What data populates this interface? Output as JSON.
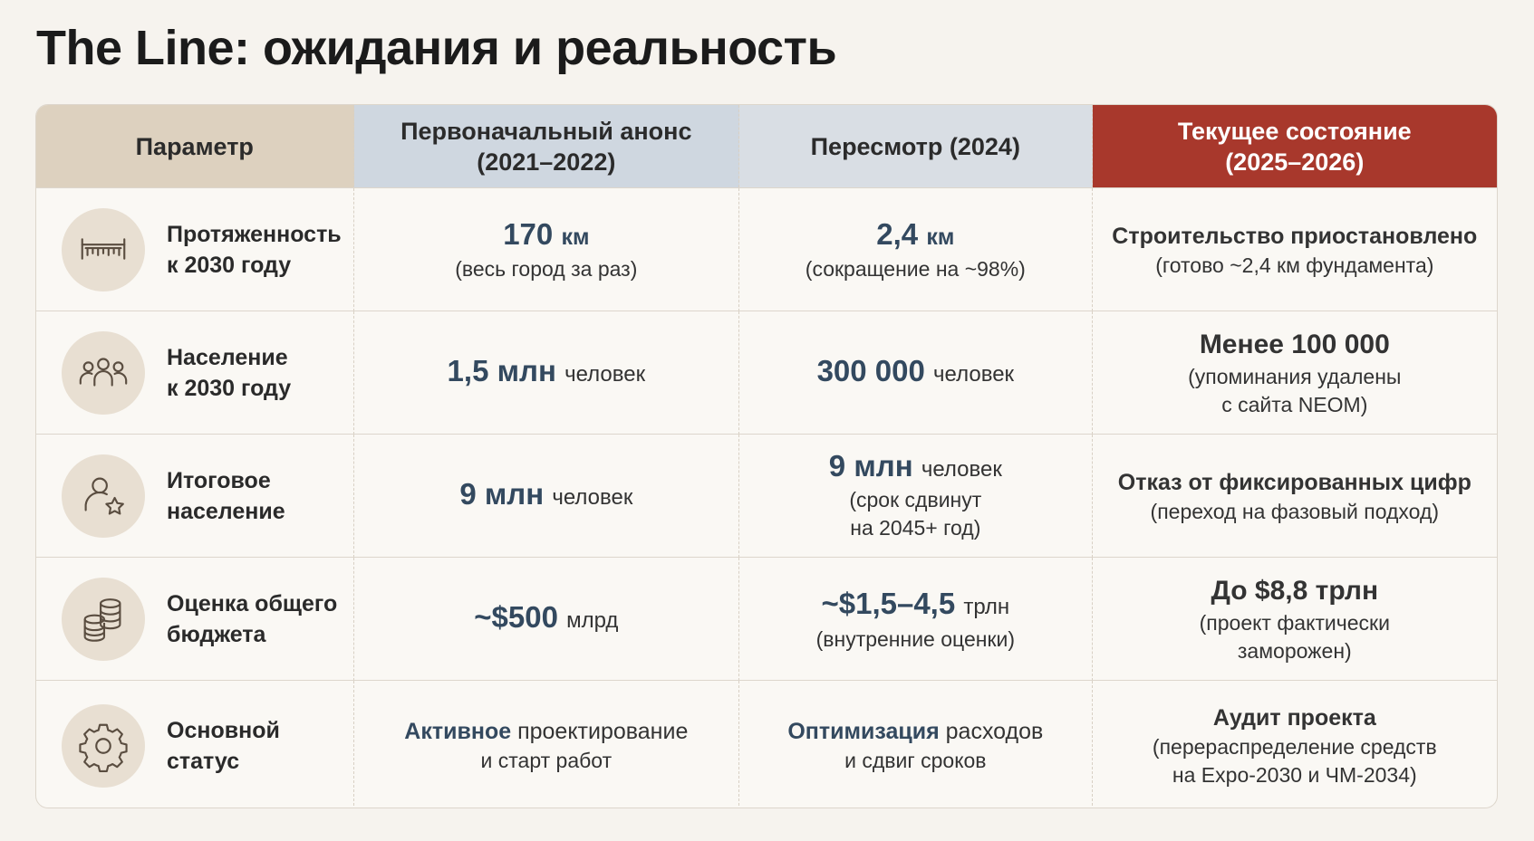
{
  "title": "The Line: ожидания и реальность",
  "colors": {
    "accent_red": "#a8382c",
    "accent_blue": "#33495f",
    "header_param": "#ddd1bf",
    "header_initial": "#cfd7e0",
    "header_revision": "#d9dee4",
    "header_current": "#a8382c"
  },
  "headers": {
    "param": "Параметр",
    "initial_l1": "Первоначальный анонс",
    "initial_l2": "(2021–2022)",
    "revision": "Пересмотр (2024)",
    "current_l1": "Текущее состояние",
    "current_l2": "(2025–2026)"
  },
  "rows": [
    {
      "icon": "ruler-length-icon",
      "label_l1": "Протяженность",
      "label_l2": "к 2030 году",
      "initial": {
        "value": "170",
        "value_unit": "км",
        "note": "(весь город за раз)"
      },
      "revision": {
        "value": "2,4",
        "value_unit": "км",
        "note": "(сокращение на ~98%)"
      },
      "current": {
        "headline": "Строительство приостановлено",
        "note": "(готово ~2,4 км фундамента)"
      }
    },
    {
      "icon": "people-group-icon",
      "label_l1": "Население",
      "label_l2": "к 2030 году",
      "initial": {
        "value": "1,5 млн",
        "suffix": "человек"
      },
      "revision": {
        "value": "300 000",
        "suffix": "человек"
      },
      "current": {
        "headline": "Менее 100 000",
        "note_l1": "(упоминания удалены",
        "note_l2": "с сайта NEOM)"
      }
    },
    {
      "icon": "person-star-icon",
      "label_l1": "Итоговое",
      "label_l2": "население",
      "initial": {
        "value": "9 млн",
        "suffix": "человек"
      },
      "revision": {
        "value": "9 млн",
        "suffix": "человек",
        "note_l1": "(срок сдвинут",
        "note_l2": "на 2045+ год)"
      },
      "current": {
        "headline": "Отказ от фиксированных цифр",
        "note": "(переход на фазовый подход)"
      }
    },
    {
      "icon": "coins-stack-icon",
      "label_l1": "Оценка общего",
      "label_l2": "бюджета",
      "initial": {
        "value": "~$500",
        "suffix": "млрд"
      },
      "revision": {
        "value": "~$1,5–4,5",
        "suffix": "трлн",
        "note": "(внутренние оценки)"
      },
      "current": {
        "headline": "До $8,8 трлн",
        "note_l1": "(проект фактически",
        "note_l2": "заморожен)"
      }
    },
    {
      "icon": "gear-icon",
      "label_l1": "Основной",
      "label_l2": "статус",
      "initial": {
        "bold": "Активное",
        "rest": "проектирование",
        "l2": "и старт работ"
      },
      "revision": {
        "bold": "Оптимизация",
        "rest": "расходов",
        "l2": "и сдвиг сроков"
      },
      "current": {
        "headline": "Аудит проекта",
        "note_l1": "(перераспределение средств",
        "note_l2": "на Expo-2030 и ЧМ-2034)"
      }
    }
  ]
}
